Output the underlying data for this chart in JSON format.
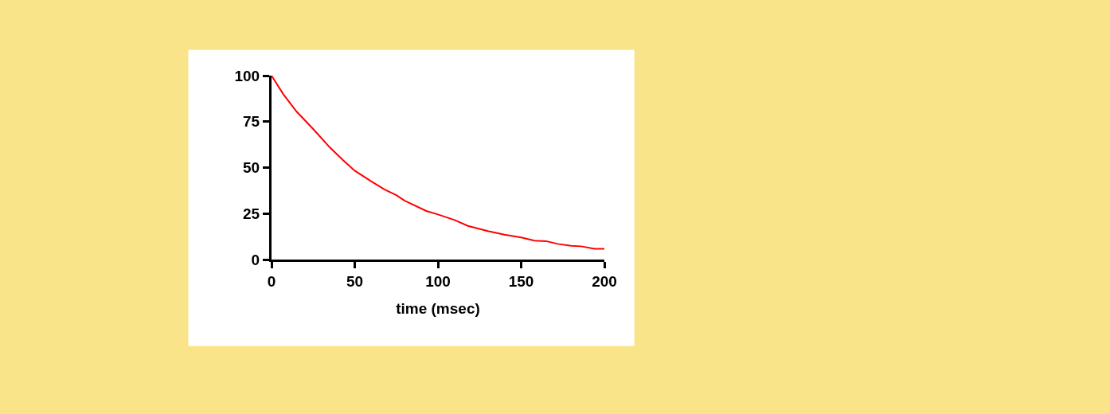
{
  "chart_data": {
    "type": "line",
    "xlabel": "time (msec)",
    "x": [
      0,
      7,
      15,
      25,
      35,
      43,
      50,
      60,
      68,
      75,
      80,
      93,
      100,
      110,
      118,
      130,
      140,
      150,
      158,
      165,
      172,
      180,
      186,
      194,
      200
    ],
    "series": [
      {
        "color": "#ff0000",
        "values": [
          100,
          90,
          80.5,
          71,
          61,
          54,
          48.3,
          42.5,
          38,
          35,
          32,
          26.4,
          24.5,
          21.5,
          18.3,
          15.5,
          13.5,
          12,
          10.3,
          10,
          8.5,
          7.5,
          7.2,
          5.8,
          5.8
        ]
      }
    ],
    "xlim": [
      0,
      200
    ],
    "xticks": [
      0,
      50,
      100,
      150,
      200
    ],
    "ylim": [
      0,
      100
    ],
    "yticks": [
      0,
      25,
      50,
      75,
      100
    ],
    "marker": "none",
    "line_style": "solid"
  }
}
